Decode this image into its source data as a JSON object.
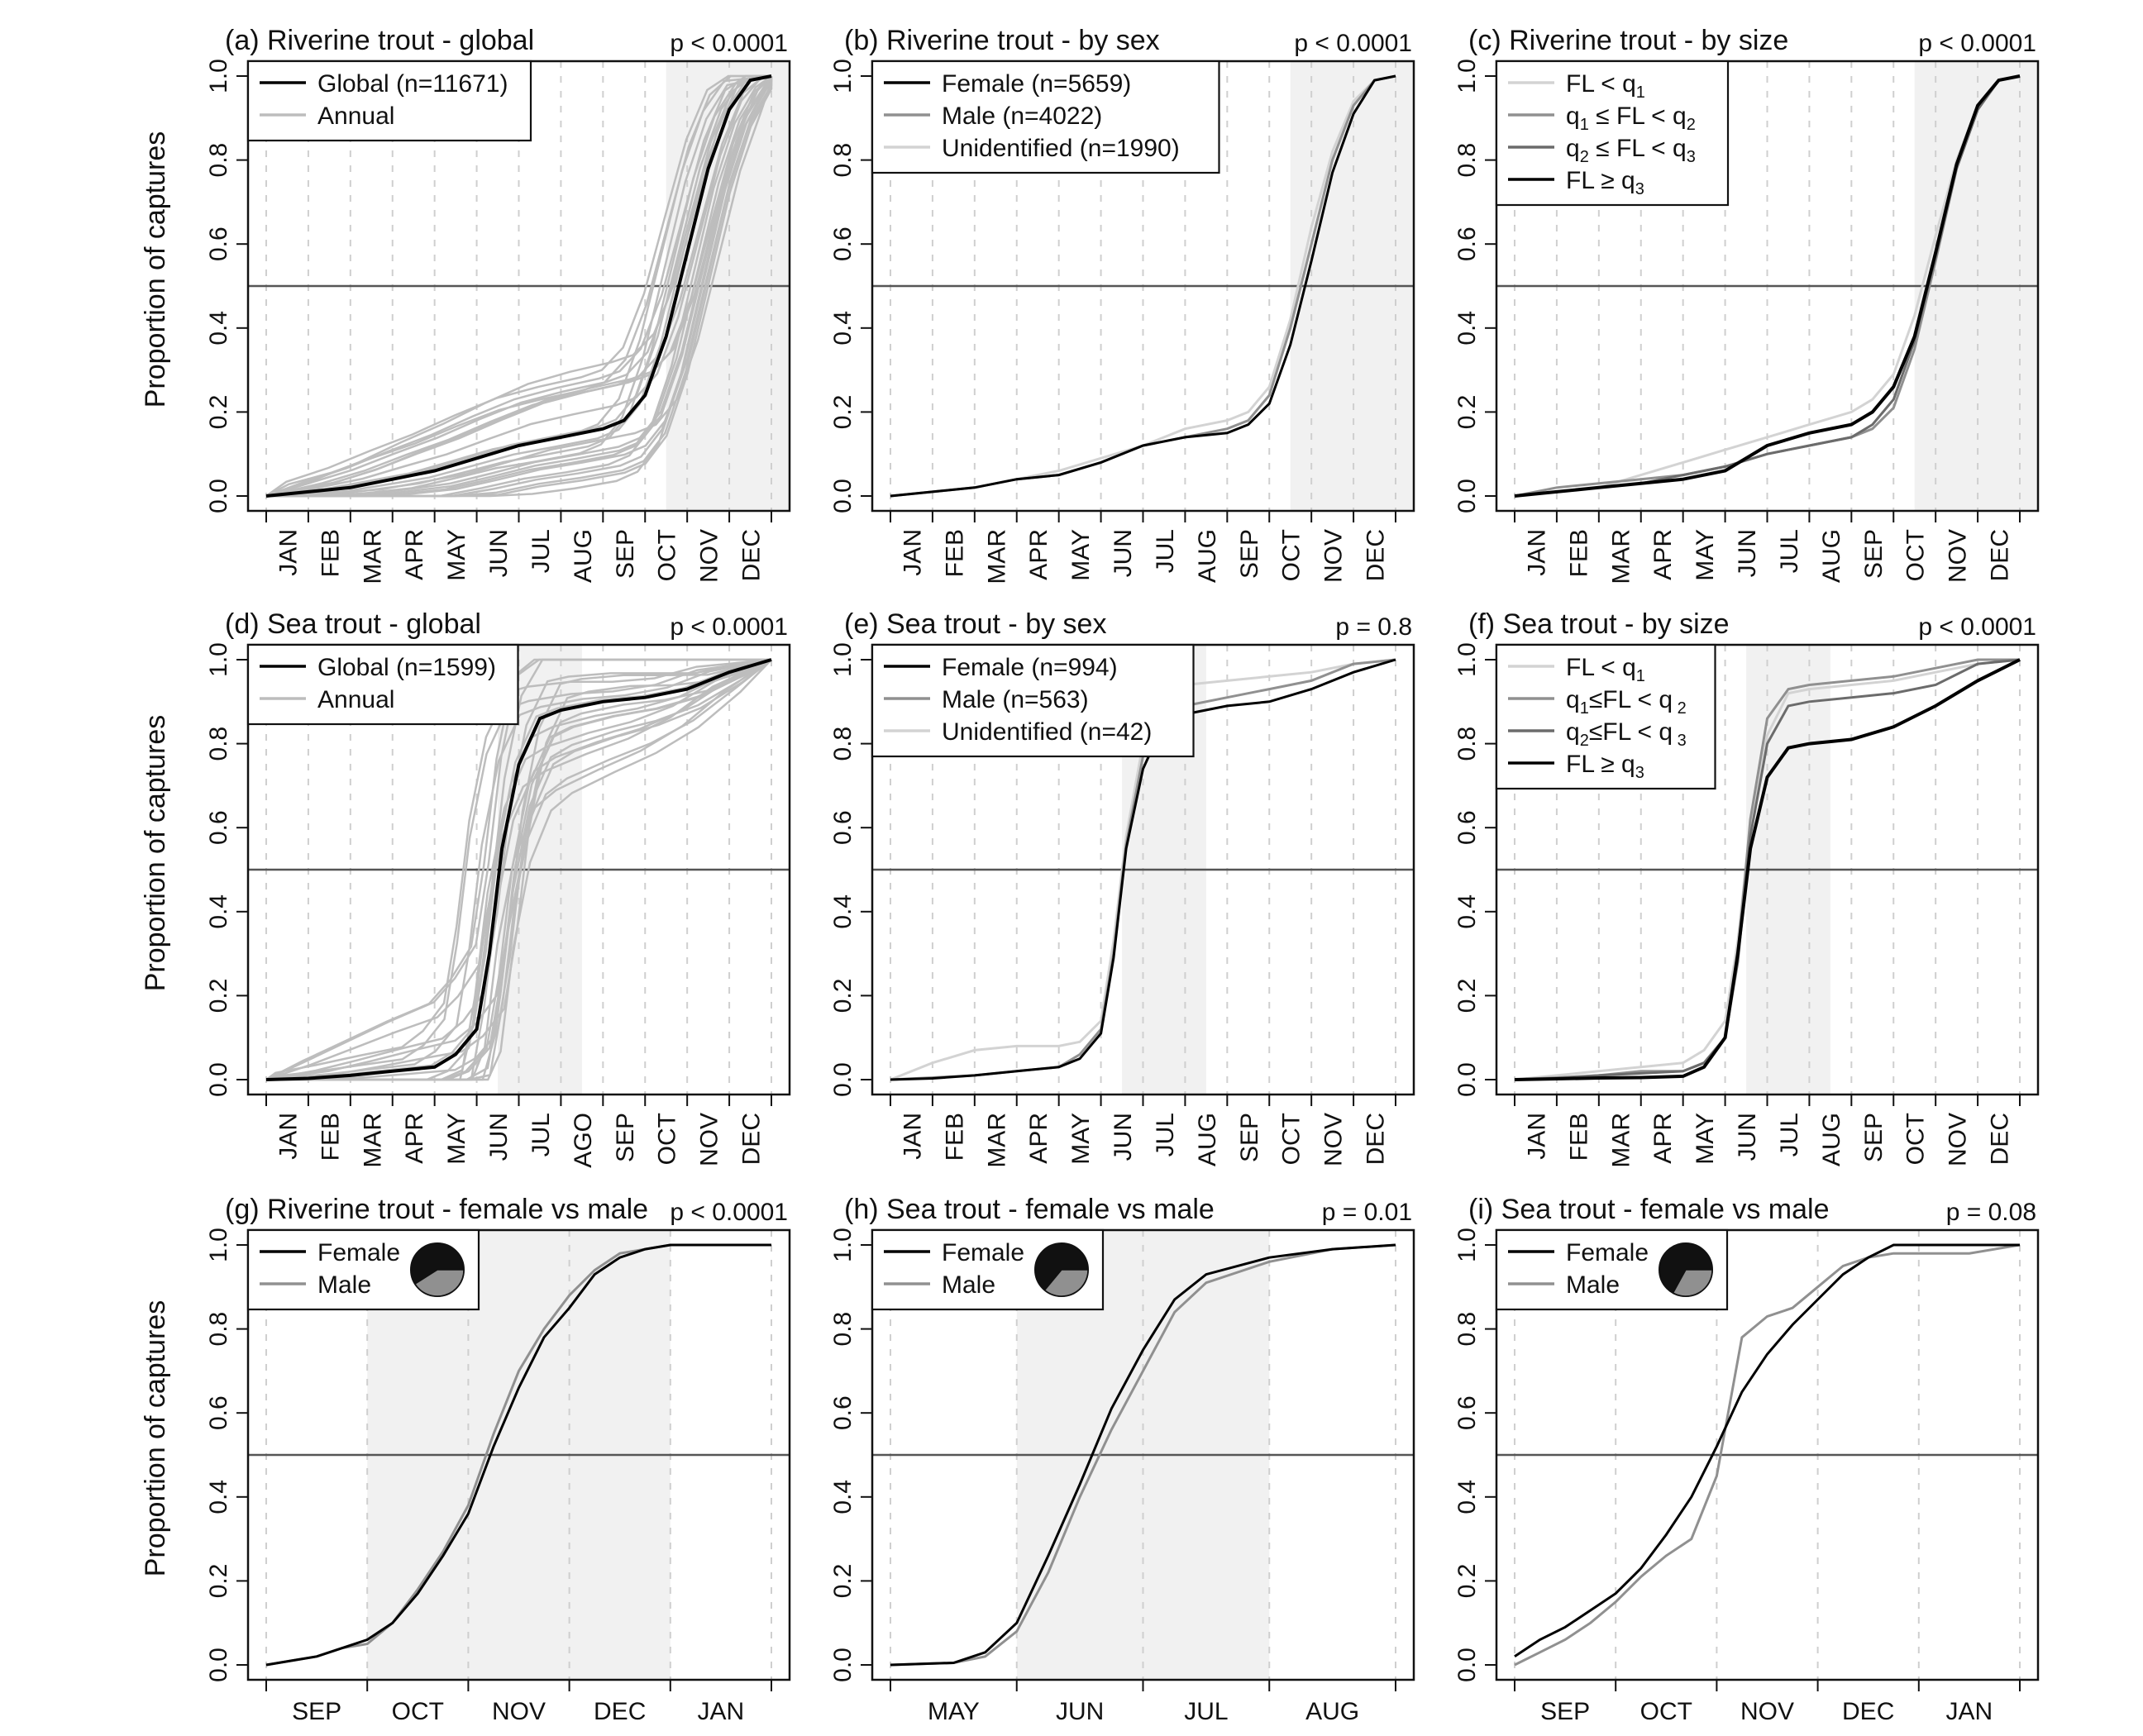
{
  "figure": {
    "y_axis_label": "Proportion of captures",
    "y_ticks": [
      "0.0",
      "0.2",
      "0.4",
      "0.6",
      "0.8",
      "1.0"
    ]
  },
  "colors": {
    "axis": "#111111",
    "black_line": "#000000",
    "dark_gray": "#6b6b6b",
    "mid_gray": "#909090",
    "light_gray": "#bdbdbd",
    "pale_gray": "#d3d3d3",
    "shade": "#f1f1f1",
    "dashed_grid": "#cfcfcf"
  },
  "chart_data": [
    {
      "id": "a",
      "type": "line",
      "title": "(a) Riverine trout - global",
      "pvalue": "p < 0.0001",
      "months": [
        "JAN",
        "FEB",
        "MAR",
        "APR",
        "MAY",
        "JUN",
        "JUL",
        "AUG",
        "SEP",
        "OCT",
        "NOV",
        "DEC"
      ],
      "ylim": [
        0,
        1
      ],
      "shade": [
        9.5,
        12.5
      ],
      "hline": 0.5,
      "legend": [
        {
          "label": "Global (n=11671)",
          "color": "#000000"
        },
        {
          "label": "Annual",
          "color": "#bdbdbd"
        }
      ],
      "x": [
        0,
        1,
        2,
        3,
        4,
        5,
        6,
        7,
        8,
        8.5,
        9,
        9.5,
        10,
        10.5,
        11,
        11.5,
        12
      ],
      "series": [
        {
          "name": "Global (n=11671)",
          "color": "#000000",
          "width": 4,
          "values": [
            0,
            0.01,
            0.02,
            0.04,
            0.06,
            0.09,
            0.12,
            0.14,
            0.16,
            0.18,
            0.24,
            0.38,
            0.58,
            0.78,
            0.92,
            0.99,
            1.0
          ]
        }
      ],
      "annual": {
        "color": "#bdbdbd",
        "count": 24,
        "spread": 0.08,
        "base_values": [
          0,
          0.01,
          0.02,
          0.04,
          0.06,
          0.09,
          0.12,
          0.14,
          0.16,
          0.18,
          0.24,
          0.38,
          0.58,
          0.78,
          0.92,
          0.99,
          1.0
        ]
      }
    },
    {
      "id": "b",
      "type": "line",
      "title": "(b) Riverine trout - by sex",
      "pvalue": "p < 0.0001",
      "months": [
        "JAN",
        "FEB",
        "MAR",
        "APR",
        "MAY",
        "JUN",
        "JUL",
        "AUG",
        "SEP",
        "OCT",
        "NOV",
        "DEC"
      ],
      "ylim": [
        0,
        1
      ],
      "shade": [
        9.5,
        12.5
      ],
      "hline": 0.5,
      "legend": [
        {
          "label": "Female (n=5659)",
          "color": "#000000"
        },
        {
          "label": "Male (n=4022)",
          "color": "#909090"
        },
        {
          "label": "Unidentified (n=1990)",
          "color": "#d3d3d3"
        }
      ],
      "x": [
        0,
        1,
        2,
        3,
        4,
        5,
        6,
        7,
        8,
        8.5,
        9,
        9.5,
        10,
        10.5,
        11,
        11.5,
        12
      ],
      "series": [
        {
          "name": "Unidentified (n=1990)",
          "color": "#d3d3d3",
          "width": 3,
          "values": [
            0,
            0.01,
            0.02,
            0.04,
            0.06,
            0.09,
            0.12,
            0.16,
            0.18,
            0.2,
            0.26,
            0.42,
            0.64,
            0.82,
            0.94,
            0.99,
            1.0
          ]
        },
        {
          "name": "Male (n=4022)",
          "color": "#909090",
          "width": 3,
          "values": [
            0,
            0.01,
            0.02,
            0.04,
            0.05,
            0.08,
            0.12,
            0.14,
            0.16,
            0.18,
            0.24,
            0.4,
            0.6,
            0.8,
            0.93,
            0.99,
            1.0
          ]
        },
        {
          "name": "Female (n=5659)",
          "color": "#000000",
          "width": 3,
          "values": [
            0,
            0.01,
            0.02,
            0.04,
            0.05,
            0.08,
            0.12,
            0.14,
            0.15,
            0.17,
            0.22,
            0.36,
            0.56,
            0.77,
            0.91,
            0.99,
            1.0
          ]
        }
      ]
    },
    {
      "id": "c",
      "type": "line",
      "title": "(c) Riverine trout - by size",
      "pvalue": "p < 0.0001",
      "months": [
        "JAN",
        "FEB",
        "MAR",
        "APR",
        "MAY",
        "JUN",
        "JUL",
        "AUG",
        "SEP",
        "OCT",
        "NOV",
        "DEC"
      ],
      "ylim": [
        0,
        1
      ],
      "shade": [
        9.5,
        12.5
      ],
      "hline": 0.5,
      "legend": [
        {
          "label": "FL < q",
          "sub1": "1",
          "color": "#d3d3d3"
        },
        {
          "label": "q",
          "sub1": "1",
          "mid": " ≤ FL < q",
          "sub2": "2",
          "color": "#909090"
        },
        {
          "label": "q",
          "sub1": "2",
          "mid": " ≤ FL < q",
          "sub2": "3",
          "color": "#6b6b6b"
        },
        {
          "label": "FL ≥ q",
          "sub1": "3",
          "color": "#000000"
        }
      ],
      "x": [
        0,
        1,
        2,
        3,
        4,
        5,
        6,
        7,
        8,
        8.5,
        9,
        9.5,
        10,
        10.5,
        11,
        11.5,
        12
      ],
      "series": [
        {
          "name": "FL < q1",
          "color": "#d3d3d3",
          "width": 3,
          "values": [
            0,
            0.01,
            0.02,
            0.05,
            0.08,
            0.11,
            0.14,
            0.17,
            0.2,
            0.23,
            0.29,
            0.43,
            0.62,
            0.8,
            0.93,
            0.99,
            1.0
          ]
        },
        {
          "name": "q1 ≤ FL < q2",
          "color": "#909090",
          "width": 3,
          "values": [
            0,
            0.02,
            0.03,
            0.04,
            0.05,
            0.07,
            0.1,
            0.12,
            0.14,
            0.16,
            0.21,
            0.35,
            0.56,
            0.78,
            0.92,
            0.99,
            1.0
          ]
        },
        {
          "name": "q2 ≤ FL < q3",
          "color": "#6b6b6b",
          "width": 3,
          "values": [
            0,
            0.01,
            0.02,
            0.03,
            0.05,
            0.07,
            0.1,
            0.12,
            0.14,
            0.17,
            0.23,
            0.37,
            0.57,
            0.78,
            0.92,
            0.99,
            1.0
          ]
        },
        {
          "name": "FL ≥ q3",
          "color": "#000000",
          "width": 4,
          "values": [
            0,
            0.01,
            0.02,
            0.03,
            0.04,
            0.06,
            0.12,
            0.15,
            0.17,
            0.2,
            0.26,
            0.38,
            0.58,
            0.79,
            0.93,
            0.99,
            1.0
          ]
        }
      ]
    },
    {
      "id": "d",
      "type": "line",
      "title": "(d) Sea trout - global",
      "pvalue": "p < 0.0001",
      "months": [
        "JAN",
        "FEB",
        "MAR",
        "APR",
        "MAY",
        "JUN",
        "JUL",
        "AGO",
        "SEP",
        "OCT",
        "NOV",
        "DEC"
      ],
      "ylim": [
        0,
        1
      ],
      "shade": [
        5.5,
        7.5
      ],
      "hline": 0.5,
      "legend": [
        {
          "label": "Global (n=1599)",
          "color": "#000000"
        },
        {
          "label": "Annual",
          "color": "#bdbdbd"
        }
      ],
      "x": [
        0,
        1,
        2,
        3,
        4,
        4.5,
        5,
        5.3,
        5.6,
        6,
        6.5,
        7,
        8,
        9,
        10,
        11,
        12
      ],
      "series": [
        {
          "name": "Global (n=1599)",
          "color": "#000000",
          "width": 4,
          "values": [
            0,
            0.003,
            0.01,
            0.02,
            0.03,
            0.06,
            0.12,
            0.3,
            0.55,
            0.75,
            0.86,
            0.88,
            0.9,
            0.91,
            0.93,
            0.97,
            1.0
          ]
        }
      ],
      "annual": {
        "color": "#bdbdbd",
        "count": 22,
        "spread": 0.12,
        "base_values": [
          0,
          0.003,
          0.01,
          0.02,
          0.03,
          0.06,
          0.12,
          0.3,
          0.55,
          0.75,
          0.86,
          0.88,
          0.9,
          0.91,
          0.93,
          0.97,
          1.0
        ]
      }
    },
    {
      "id": "e",
      "type": "line",
      "title": "(e) Sea trout - by sex",
      "pvalue": "p = 0.8",
      "months": [
        "JAN",
        "FEB",
        "MAR",
        "APR",
        "MAY",
        "JUN",
        "JUL",
        "AUG",
        "SEP",
        "OCT",
        "NOV",
        "DEC"
      ],
      "ylim": [
        0,
        1
      ],
      "shade": [
        5.5,
        7.5
      ],
      "hline": 0.5,
      "legend": [
        {
          "label": "Female (n=994)",
          "color": "#000000"
        },
        {
          "label": "Male (n=563)",
          "color": "#909090"
        },
        {
          "label": "Unidentified (n=42)",
          "color": "#d3d3d3"
        }
      ],
      "x": [
        0,
        1,
        2,
        3,
        4,
        4.5,
        5,
        5.3,
        5.6,
        6,
        6.5,
        7,
        8,
        9,
        10,
        11,
        12
      ],
      "series": [
        {
          "name": "Unidentified (n=42)",
          "color": "#d3d3d3",
          "width": 3,
          "values": [
            0,
            0.04,
            0.07,
            0.08,
            0.08,
            0.09,
            0.14,
            0.33,
            0.58,
            0.8,
            0.92,
            0.94,
            0.95,
            0.96,
            0.97,
            0.99,
            1.0
          ]
        },
        {
          "name": "Male (n=563)",
          "color": "#909090",
          "width": 3,
          "values": [
            0,
            0.005,
            0.01,
            0.02,
            0.03,
            0.06,
            0.12,
            0.3,
            0.56,
            0.77,
            0.88,
            0.89,
            0.91,
            0.93,
            0.95,
            0.99,
            1.0
          ]
        },
        {
          "name": "Female (n=994)",
          "color": "#000000",
          "width": 3,
          "values": [
            0,
            0.003,
            0.01,
            0.02,
            0.03,
            0.05,
            0.11,
            0.29,
            0.55,
            0.74,
            0.85,
            0.87,
            0.89,
            0.9,
            0.93,
            0.97,
            1.0
          ]
        }
      ]
    },
    {
      "id": "f",
      "type": "line",
      "title": "(f) Sea trout - by size",
      "pvalue": "p < 0.0001",
      "months": [
        "JAN",
        "FEB",
        "MAR",
        "APR",
        "MAY",
        "JUN",
        "JUL",
        "AUG",
        "SEP",
        "OCT",
        "NOV",
        "DEC"
      ],
      "ylim": [
        0,
        1
      ],
      "shade": [
        5.5,
        7.5
      ],
      "hline": 0.5,
      "legend": [
        {
          "label": "FL < q",
          "sub1": "1",
          "color": "#d3d3d3"
        },
        {
          "label": "q",
          "sub1": "1",
          "mid": "≤FL < q",
          "sub2": " 2",
          "color": "#909090"
        },
        {
          "label": "q",
          "sub1": "2",
          "mid": "≤FL < q",
          "sub2": " 3",
          "color": "#6b6b6b"
        },
        {
          "label": "FL ≥ q",
          "sub1": "3",
          "color": "#000000"
        }
      ],
      "x": [
        0,
        1,
        2,
        3,
        4,
        4.5,
        5,
        5.3,
        5.6,
        6,
        6.5,
        7,
        8,
        9,
        10,
        11,
        12
      ],
      "series": [
        {
          "name": "FL < q1",
          "color": "#d3d3d3",
          "width": 3,
          "values": [
            0,
            0.01,
            0.02,
            0.03,
            0.04,
            0.07,
            0.14,
            0.33,
            0.6,
            0.82,
            0.92,
            0.93,
            0.94,
            0.95,
            0.97,
            0.99,
            1.0
          ]
        },
        {
          "name": "q1 ≤ FL < q2",
          "color": "#909090",
          "width": 3,
          "values": [
            0,
            0.005,
            0.01,
            0.02,
            0.02,
            0.04,
            0.1,
            0.3,
            0.62,
            0.86,
            0.93,
            0.94,
            0.95,
            0.96,
            0.98,
            1.0,
            1.0
          ]
        },
        {
          "name": "q2 ≤ FL < q3",
          "color": "#6b6b6b",
          "width": 3,
          "values": [
            0,
            0.003,
            0.01,
            0.015,
            0.02,
            0.04,
            0.1,
            0.28,
            0.58,
            0.8,
            0.89,
            0.9,
            0.91,
            0.92,
            0.94,
            0.99,
            1.0
          ]
        },
        {
          "name": "FL ≥ q3",
          "color": "#000000",
          "width": 4,
          "values": [
            0,
            0.002,
            0.004,
            0.005,
            0.008,
            0.03,
            0.1,
            0.3,
            0.55,
            0.72,
            0.79,
            0.8,
            0.81,
            0.84,
            0.89,
            0.95,
            1.0
          ]
        }
      ]
    },
    {
      "id": "g",
      "type": "line",
      "title": "(g) Riverine trout - female vs male",
      "pvalue": "p < 0.0001",
      "months": [
        "SEP",
        "OCT",
        "NOV",
        "DEC",
        "JAN"
      ],
      "ylim": [
        0,
        1
      ],
      "shade": [
        1,
        4
      ],
      "hline": 0.5,
      "legend": [
        {
          "label": "Female",
          "color": "#000000"
        },
        {
          "label": "Male",
          "color": "#909090"
        }
      ],
      "pie": {
        "female": 0.59,
        "male": 0.41
      },
      "x": [
        0,
        0.25,
        0.5,
        0.75,
        1,
        1.25,
        1.5,
        1.75,
        2,
        2.25,
        2.5,
        2.75,
        3,
        3.25,
        3.5,
        3.75,
        4,
        4.5,
        5
      ],
      "series": [
        {
          "name": "Male",
          "color": "#909090",
          "width": 3,
          "values": [
            0,
            0.01,
            0.02,
            0.04,
            0.05,
            0.1,
            0.18,
            0.27,
            0.38,
            0.55,
            0.7,
            0.8,
            0.88,
            0.94,
            0.98,
            0.99,
            1.0,
            1.0,
            1.0
          ]
        },
        {
          "name": "Female",
          "color": "#000000",
          "width": 3,
          "values": [
            0,
            0.01,
            0.02,
            0.04,
            0.06,
            0.1,
            0.17,
            0.26,
            0.36,
            0.52,
            0.66,
            0.78,
            0.85,
            0.93,
            0.97,
            0.99,
            1.0,
            1.0,
            1.0
          ]
        }
      ]
    },
    {
      "id": "h",
      "type": "line",
      "title": "(h) Sea trout - female vs male",
      "pvalue": "p = 0.01",
      "months": [
        "MAY",
        "JUN",
        "JUL",
        "AUG"
      ],
      "ylim": [
        0,
        1
      ],
      "shade": [
        1,
        3
      ],
      "hline": 0.5,
      "legend": [
        {
          "label": "Female",
          "color": "#000000"
        },
        {
          "label": "Male",
          "color": "#909090"
        }
      ],
      "pie": {
        "female": 0.64,
        "male": 0.36
      },
      "x": [
        0,
        0.5,
        0.75,
        1,
        1.25,
        1.5,
        1.75,
        2,
        2.25,
        2.5,
        3,
        3.5,
        4
      ],
      "series": [
        {
          "name": "Male",
          "color": "#909090",
          "width": 3,
          "values": [
            0,
            0.005,
            0.02,
            0.08,
            0.22,
            0.4,
            0.56,
            0.7,
            0.84,
            0.91,
            0.96,
            0.99,
            1.0
          ]
        },
        {
          "name": "Female",
          "color": "#000000",
          "width": 3,
          "values": [
            0,
            0.005,
            0.03,
            0.1,
            0.26,
            0.43,
            0.61,
            0.75,
            0.87,
            0.93,
            0.97,
            0.99,
            1.0
          ]
        }
      ]
    },
    {
      "id": "i",
      "type": "line",
      "title": "(i) Sea trout - female vs male",
      "pvalue": "p = 0.08",
      "months": [
        "SEP",
        "OCT",
        "NOV",
        "DEC",
        "JAN"
      ],
      "ylim": [
        0,
        1
      ],
      "shade": null,
      "hline": 0.5,
      "legend": [
        {
          "label": "Female",
          "color": "#000000"
        },
        {
          "label": "Male",
          "color": "#909090"
        }
      ],
      "pie": {
        "female": 0.67,
        "male": 0.33
      },
      "x": [
        0,
        0.25,
        0.5,
        0.75,
        1,
        1.25,
        1.5,
        1.75,
        2,
        2.25,
        2.5,
        2.75,
        3,
        3.25,
        3.5,
        3.75,
        4,
        4.5,
        5
      ],
      "series": [
        {
          "name": "Male",
          "color": "#909090",
          "width": 3,
          "values": [
            0,
            0.03,
            0.06,
            0.1,
            0.15,
            0.21,
            0.26,
            0.3,
            0.45,
            0.78,
            0.83,
            0.85,
            0.9,
            0.95,
            0.97,
            0.98,
            0.98,
            0.98,
            1.0
          ]
        },
        {
          "name": "Female",
          "color": "#000000",
          "width": 3,
          "values": [
            0.02,
            0.06,
            0.09,
            0.13,
            0.17,
            0.23,
            0.31,
            0.4,
            0.52,
            0.65,
            0.74,
            0.81,
            0.87,
            0.93,
            0.97,
            1.0,
            1.0,
            1.0,
            1.0
          ]
        }
      ]
    }
  ]
}
